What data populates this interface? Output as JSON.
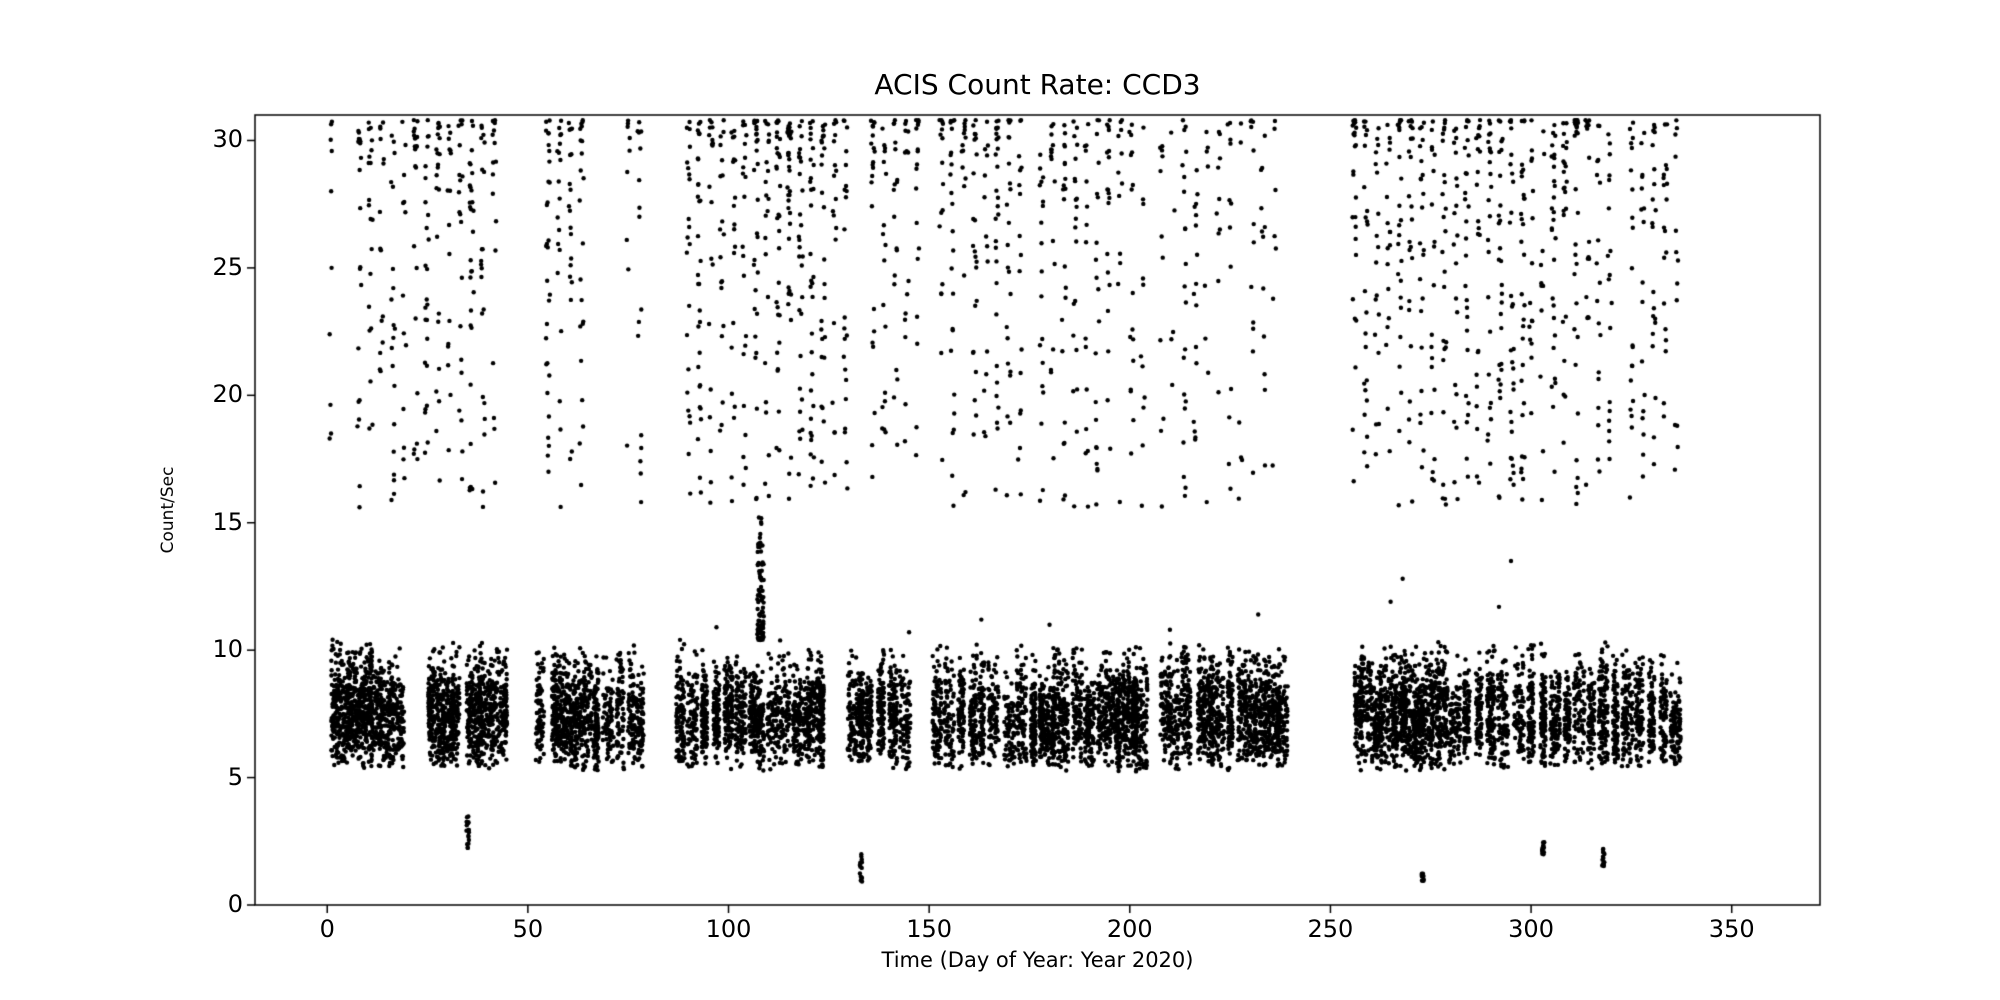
{
  "chart_data": {
    "type": "scatter",
    "title": "ACIS Count Rate: CCD3",
    "xlabel": "Time (Day of Year: Year 2020)",
    "ylabel": "Count/Sec",
    "xlim": [
      -18,
      372
    ],
    "ylim": [
      0,
      31
    ],
    "xticks": [
      0,
      50,
      100,
      150,
      200,
      250,
      300,
      350
    ],
    "yticks": [
      0,
      5,
      10,
      15,
      20,
      25,
      30
    ],
    "grid": false,
    "legend": "none",
    "marker": {
      "color": "#000000",
      "radius": 2.2
    },
    "seed": 42,
    "main_band": {
      "description": "dense vertical stripes of points per observation day",
      "y_mean": 7.4,
      "y_sd": 1.05,
      "y_min": 5.2,
      "y_max": 10.6,
      "stripe_centers": [
        2,
        4,
        6,
        8,
        10,
        12,
        14,
        16,
        18,
        26,
        28,
        30,
        32,
        36,
        38,
        40,
        42,
        44,
        53,
        57,
        59,
        61,
        63,
        65,
        67,
        70,
        73,
        76,
        78,
        88,
        91,
        94,
        97,
        100,
        103,
        106,
        108,
        111,
        114,
        117,
        119,
        121,
        123,
        131,
        133,
        135,
        138,
        141,
        144,
        152,
        155,
        158,
        161,
        163,
        166,
        170,
        173,
        176,
        178,
        180,
        182,
        184,
        187,
        190,
        193,
        195,
        197,
        199,
        201,
        203,
        209,
        211,
        214,
        218,
        220,
        222,
        225,
        228,
        230,
        232,
        234,
        236,
        238,
        257,
        259,
        262,
        264,
        266,
        268,
        270,
        272,
        274,
        276,
        278,
        281,
        284,
        287,
        290,
        293,
        297,
        300,
        303,
        306,
        309,
        312,
        315,
        318,
        321,
        324,
        327,
        330,
        333,
        336
      ]
    },
    "high_clusters": {
      "description": "scattered high count-rate points, columnar clusters",
      "y_min": 15.6,
      "y_max": 30.8,
      "col_spacing": 2.8,
      "clusters": [
        {
          "x0": 1,
          "x1": 4,
          "n": 10
        },
        {
          "x0": 8,
          "x1": 45,
          "n": 260
        },
        {
          "x0": 55,
          "x1": 66,
          "n": 90
        },
        {
          "x0": 75,
          "x1": 80,
          "n": 25
        },
        {
          "x0": 90,
          "x1": 132,
          "n": 380
        },
        {
          "x0": 136,
          "x1": 150,
          "n": 90
        },
        {
          "x0": 153,
          "x1": 176,
          "n": 160
        },
        {
          "x0": 178,
          "x1": 205,
          "n": 170
        },
        {
          "x0": 208,
          "x1": 238,
          "n": 120
        },
        {
          "x0": 256,
          "x1": 300,
          "n": 380
        },
        {
          "x0": 300,
          "x1": 322,
          "n": 160
        },
        {
          "x0": 325,
          "x1": 340,
          "n": 90
        }
      ]
    },
    "spike": {
      "x": 108,
      "y0": 10.4,
      "y1": 15.3,
      "n": 95,
      "x_jitter": 1.6
    },
    "low_streaks": [
      {
        "x": 35,
        "y0": 2.05,
        "y1": 3.5,
        "n": 18
      },
      {
        "x": 133,
        "y0": 0.9,
        "y1": 2.0,
        "n": 16
      },
      {
        "x": 273,
        "y0": 0.95,
        "y1": 1.25,
        "n": 10
      },
      {
        "x": 303,
        "y0": 1.95,
        "y1": 2.5,
        "n": 12
      },
      {
        "x": 318,
        "y0": 1.5,
        "y1": 2.45,
        "n": 14
      }
    ],
    "extra_points": [
      [
        163,
        11.2
      ],
      [
        180,
        11.0
      ],
      [
        268,
        12.8
      ],
      [
        232,
        11.4
      ],
      [
        292,
        11.7
      ],
      [
        97,
        10.9
      ],
      [
        145,
        10.7
      ],
      [
        210,
        10.8
      ],
      [
        295,
        13.5
      ],
      [
        265,
        11.9
      ]
    ]
  }
}
